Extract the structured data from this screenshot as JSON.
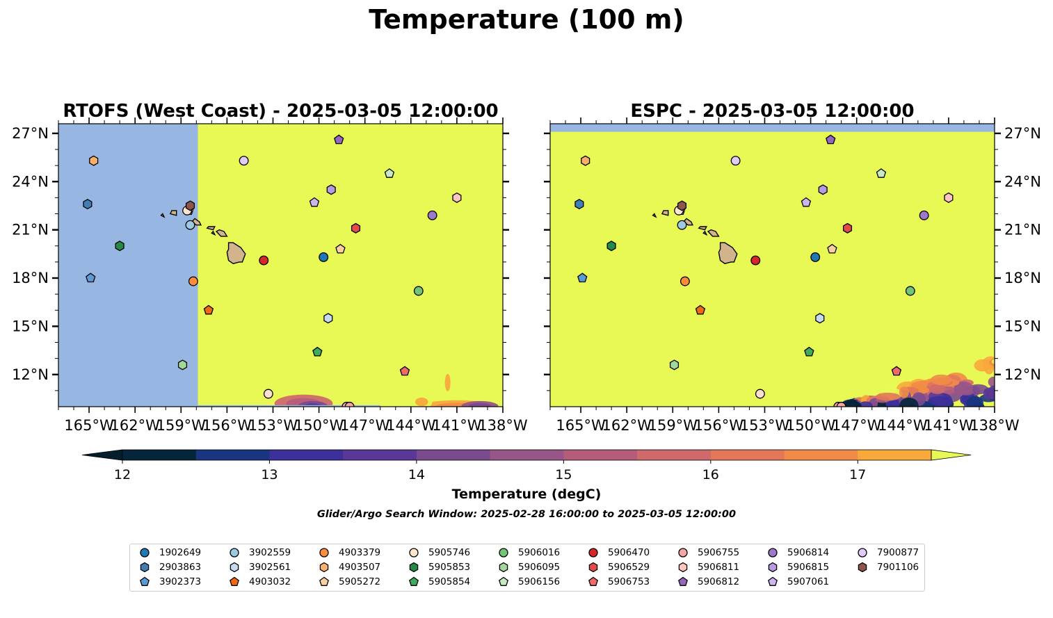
{
  "figure": {
    "suptitle": "Temperature (100 m)",
    "search_window": "Glider/Argo Search Window: 2025-02-28 16:00:00 to 2025-03-05 12:00:00"
  },
  "chart_data": [
    {
      "type": "heatmap",
      "title": "RTOFS (West Coast) - 2025-03-05 12:00:00",
      "x_range": [
        -167,
        -138
      ],
      "y_range": [
        10,
        27.6
      ],
      "x_ticks": [
        "165°W",
        "162°W",
        "159°W",
        "156°W",
        "153°W",
        "150°W",
        "147°W",
        "144°W",
        "141°W",
        "138°W"
      ],
      "y_ticks": [
        "12°N",
        "15°N",
        "18°N",
        "21°N",
        "24°N",
        "27°N"
      ],
      "tick_side": "left",
      "no_data_west_of": -157.9,
      "field_value": "above 17.5 degC over most of the domain, cooler water in the south"
    },
    {
      "type": "heatmap",
      "title": "ESPC - 2025-03-05 12:00:00",
      "x_range": [
        -167,
        -138
      ],
      "y_range": [
        10,
        27.6
      ],
      "x_ticks": [
        "165°W",
        "162°W",
        "159°W",
        "156°W",
        "153°W",
        "150°W",
        "147°W",
        "144°W",
        "141°W",
        "138°W"
      ],
      "y_ticks": [
        "12°N",
        "15°N",
        "18°N",
        "21°N",
        "24°N",
        "27°N"
      ],
      "tick_side": "right",
      "no_data_north_of": 27.1,
      "field_value": "above 17.5 degC over most of the domain, cooler water in the southeast"
    }
  ],
  "colorbar": {
    "label": "Temperature (degC)",
    "min": 11.75,
    "max": 17.75,
    "levels": [
      12.0,
      12.5,
      13.0,
      13.5,
      14.0,
      14.5,
      15.0,
      15.5,
      16.0,
      16.5,
      17.0,
      17.5
    ],
    "colors": [
      "#05253a",
      "#1a3580",
      "#3d309a",
      "#5a3996",
      "#7a4a8f",
      "#985588",
      "#b45d7b",
      "#cf6a6a",
      "#e2775a",
      "#f08c48",
      "#f8a93c",
      "#f6cb44"
    ],
    "under_color": "#041e2e",
    "over_color": "#e8f955",
    "tick_labels": [
      "12",
      "13",
      "14",
      "15",
      "16",
      "17"
    ],
    "tick_values": [
      12,
      13,
      14,
      15,
      16,
      17
    ]
  },
  "colors": {
    "no_data": "#98b6e2",
    "warm_field": "#e8f955",
    "land": "#d2b48c"
  },
  "floats": [
    {
      "id": "1902649",
      "lon": -149.7,
      "lat": 19.3,
      "marker": "circle",
      "color": "#1f77b4"
    },
    {
      "id": "2903863",
      "lon": -165.1,
      "lat": 22.6,
      "marker": "hexagon",
      "color": "#3f7fb5"
    },
    {
      "id": "3902373",
      "lon": -164.9,
      "lat": 18.0,
      "marker": "pentagon",
      "color": "#5b9bd5"
    },
    {
      "id": "3902559",
      "lon": -158.4,
      "lat": 21.3,
      "marker": "circle",
      "color": "#9ecae1"
    },
    {
      "id": "3902561",
      "lon": -149.4,
      "lat": 15.5,
      "marker": "hexagon",
      "color": "#c6dbef"
    },
    {
      "id": "4903032",
      "lon": -157.2,
      "lat": 16.0,
      "marker": "pentagon",
      "color": "#f16913"
    },
    {
      "id": "4903379",
      "lon": -158.2,
      "lat": 17.8,
      "marker": "circle",
      "color": "#fd8d3c"
    },
    {
      "id": "4903507",
      "lon": -164.7,
      "lat": 25.3,
      "marker": "hexagon",
      "color": "#fdae6b"
    },
    {
      "id": "5905272",
      "lon": -158.5,
      "lat": 22.2,
      "marker": "pentagon",
      "color": "#fdd0a2"
    },
    {
      "id": "5905746",
      "lon": -158.6,
      "lat": 22.2,
      "marker": "circle",
      "color": "#fee6ce"
    },
    {
      "id": "5905853",
      "lon": -163.0,
      "lat": 20.0,
      "marker": "hexagon",
      "color": "#238b45"
    },
    {
      "id": "5905854",
      "lon": -150.1,
      "lat": 13.4,
      "marker": "pentagon",
      "color": "#41ab5d"
    },
    {
      "id": "5906016",
      "lon": -143.5,
      "lat": 17.2,
      "marker": "circle",
      "color": "#74c476"
    },
    {
      "id": "5906095",
      "lon": -158.9,
      "lat": 12.6,
      "marker": "hexagon",
      "color": "#a1d99b"
    },
    {
      "id": "5906156",
      "lon": -145.4,
      "lat": 24.5,
      "marker": "pentagon",
      "color": "#c7e9c0"
    },
    {
      "id": "5906470",
      "lon": -153.6,
      "lat": 19.1,
      "marker": "circle",
      "color": "#d62728"
    },
    {
      "id": "5906529",
      "lon": -147.6,
      "lat": 21.1,
      "marker": "hexagon",
      "color": "#e34a4a"
    },
    {
      "id": "5906753",
      "lon": -144.4,
      "lat": 12.2,
      "marker": "pentagon",
      "color": "#ef6a6a"
    },
    {
      "id": "5906755",
      "lon": -148.2,
      "lat": 10.0,
      "marker": "circle",
      "color": "#f4a6a6"
    },
    {
      "id": "5906811",
      "lon": -141.0,
      "lat": 23.0,
      "marker": "hexagon",
      "color": "#fcc5c0"
    },
    {
      "id": "5906812",
      "lon": -148.7,
      "lat": 26.6,
      "marker": "pentagon",
      "color": "#9467bd"
    },
    {
      "id": "5906814",
      "lon": -142.6,
      "lat": 21.9,
      "marker": "circle",
      "color": "#9e79c9"
    },
    {
      "id": "5906815",
      "lon": -149.2,
      "lat": 23.5,
      "marker": "hexagon",
      "color": "#b89ae0"
    },
    {
      "id": "5907061",
      "lon": -150.3,
      "lat": 22.7,
      "marker": "pentagon",
      "color": "#cdb5f0"
    },
    {
      "id": "7900877",
      "lon": -154.9,
      "lat": 25.3,
      "marker": "circle",
      "color": "#e2ccf7"
    },
    {
      "id": "7901106",
      "lon": -158.4,
      "lat": 22.5,
      "marker": "hexagon",
      "color": "#8c564b"
    }
  ],
  "extra_points": [
    {
      "lon": -153.3,
      "lat": 10.8,
      "marker": "circle",
      "color": "#fde0d0"
    },
    {
      "lon": -148.6,
      "lat": 19.8,
      "marker": "pentagon",
      "color": "#fdd0a2"
    },
    {
      "lon": -148.0,
      "lat": 10.0,
      "marker": "circle",
      "color": "#f4a6a6"
    }
  ]
}
